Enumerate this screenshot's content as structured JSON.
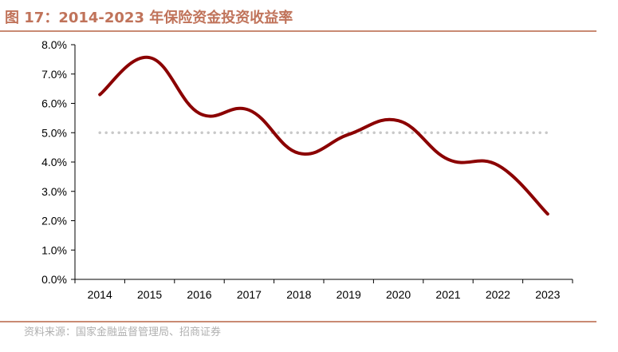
{
  "header": {
    "title": "图 17：2014-2023 年保险资金投资收益率"
  },
  "footer": {
    "source": "资料来源：国家金融监督管理局、招商证券"
  },
  "colors": {
    "title": "#c0735a",
    "rule": "#c98a73",
    "line": "#8b0000",
    "reference": "#c8c8c8",
    "source": "#b0b0b0"
  },
  "chart_data": {
    "type": "line",
    "title": "图 17：2014-2023 年保险资金投资收益率",
    "xlabel": "",
    "ylabel": "",
    "categories": [
      "2014",
      "2015",
      "2016",
      "2017",
      "2018",
      "2019",
      "2020",
      "2021",
      "2022",
      "2023"
    ],
    "series": [
      {
        "values": [
          6.3,
          7.56,
          5.66,
          5.77,
          4.3,
          4.94,
          5.41,
          4.09,
          3.89,
          2.23
        ],
        "style": "solid"
      },
      {
        "values": [
          5.0,
          5.0,
          5.0,
          5.0,
          5.0,
          5.0,
          5.0,
          5.0,
          5.0,
          5.0
        ],
        "style": "dotted"
      }
    ],
    "ylim": [
      0,
      8
    ],
    "yticks": [
      "0.0%",
      "1.0%",
      "2.0%",
      "3.0%",
      "4.0%",
      "5.0%",
      "6.0%",
      "7.0%",
      "8.0%"
    ],
    "grid": false,
    "legend": "none"
  }
}
